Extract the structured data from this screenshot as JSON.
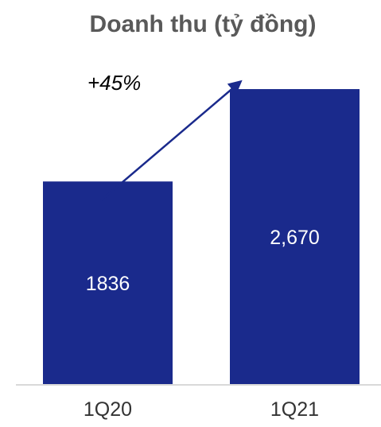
{
  "chart_data": {
    "type": "bar",
    "title": "Doanh thu (tỷ đồng)",
    "categories": [
      "1Q20",
      "1Q21"
    ],
    "values": [
      1836,
      2670
    ],
    "value_labels": [
      "1836",
      "2,670"
    ],
    "annotation": "+45%",
    "ylim": [
      0,
      2900
    ],
    "grid": false,
    "legend": "none",
    "colors": {
      "bar": "#1a2a8c",
      "arrow": "#1a2a8c",
      "baseline": "#d9d9d9",
      "title": "#595959"
    }
  }
}
